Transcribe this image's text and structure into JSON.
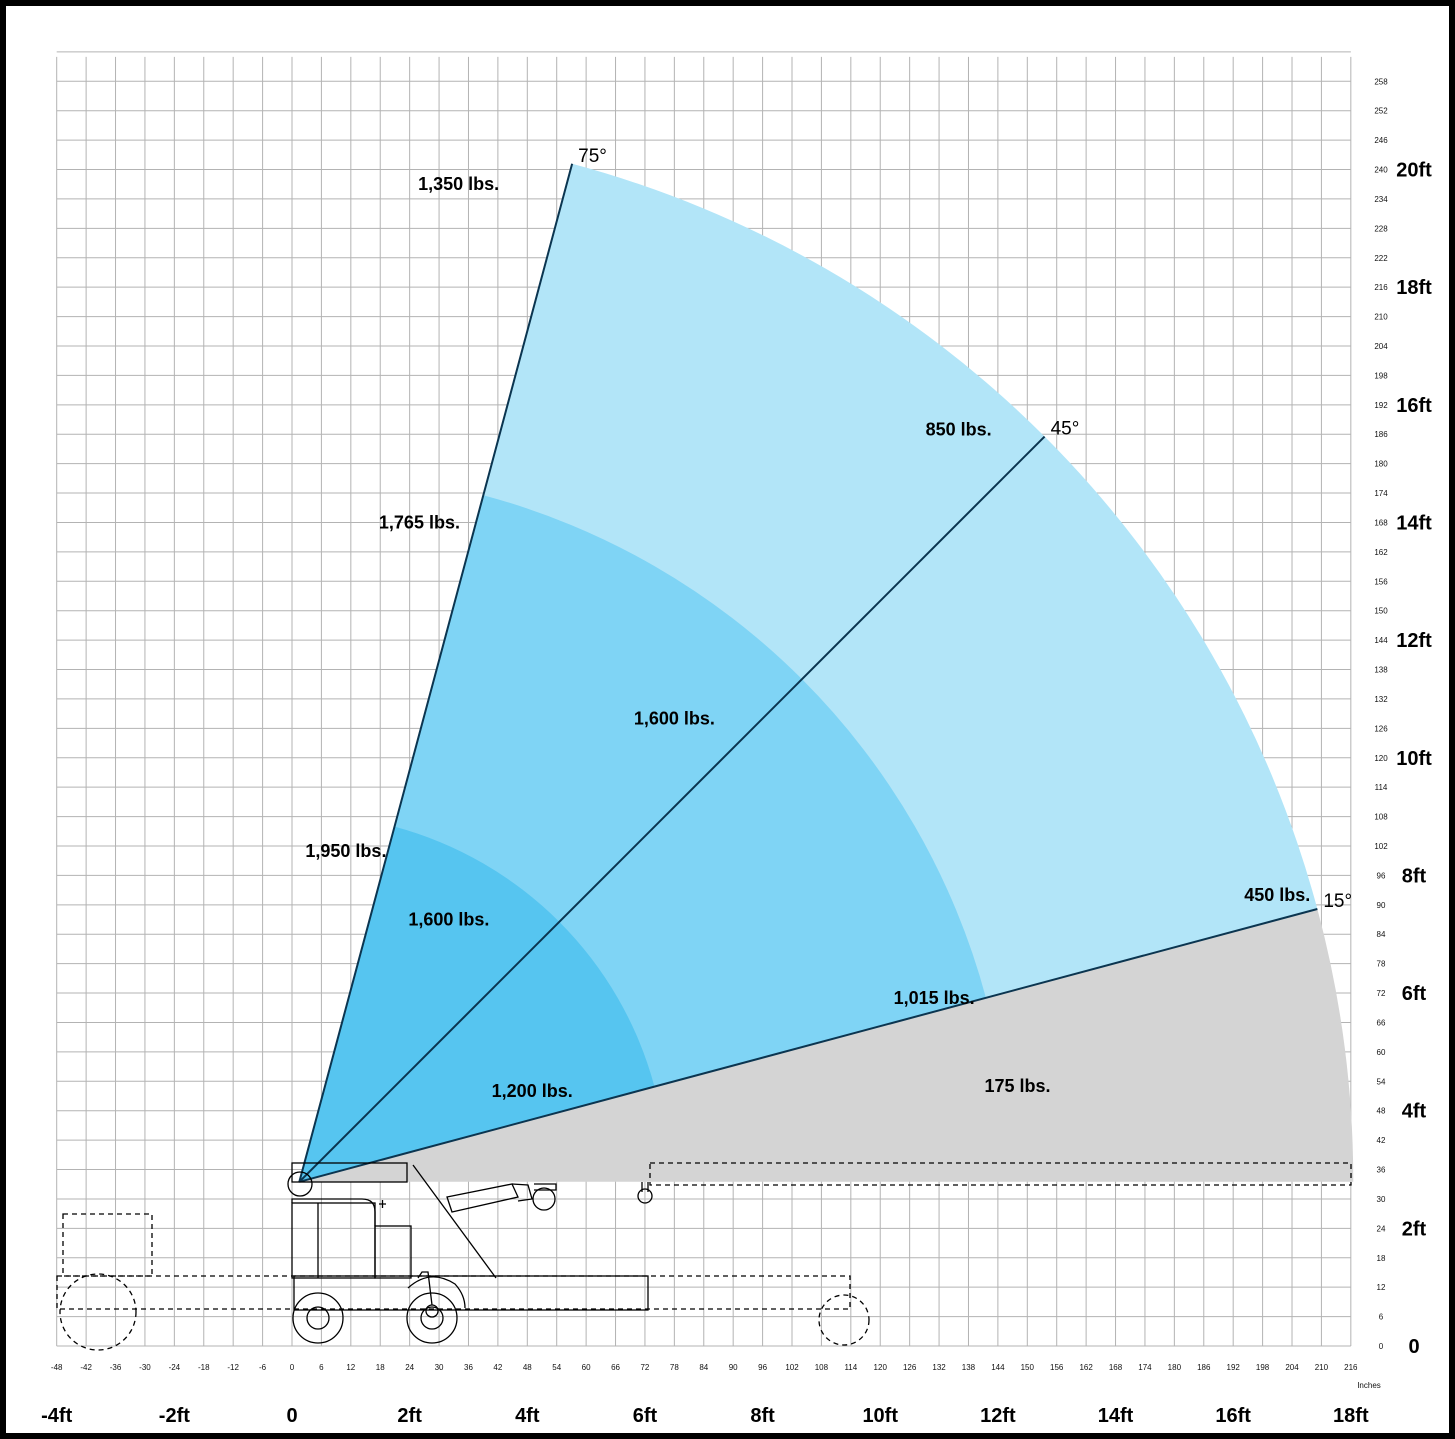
{
  "chart_data": {
    "type": "area",
    "title": "",
    "units": "Inches",
    "x_axis": {
      "inch_ticks": [
        -48,
        -42,
        -36,
        -30,
        -24,
        -18,
        -12,
        -6,
        0,
        6,
        12,
        18,
        24,
        30,
        36,
        42,
        48,
        54,
        60,
        66,
        72,
        78,
        84,
        90,
        96,
        102,
        108,
        114,
        120,
        126,
        132,
        138,
        144,
        150,
        156,
        162,
        168,
        174,
        180,
        186,
        192,
        198,
        204,
        210,
        216
      ],
      "foot_ticks": [
        {
          "value": -48,
          "label": "-4ft"
        },
        {
          "value": -24,
          "label": "-2ft"
        },
        {
          "value": 0,
          "label": "0"
        },
        {
          "value": 24,
          "label": "2ft"
        },
        {
          "value": 48,
          "label": "4ft"
        },
        {
          "value": 72,
          "label": "6ft"
        },
        {
          "value": 96,
          "label": "8ft"
        },
        {
          "value": 120,
          "label": "10ft"
        },
        {
          "value": 144,
          "label": "12ft"
        },
        {
          "value": 168,
          "label": "14ft"
        },
        {
          "value": 192,
          "label": "16ft"
        },
        {
          "value": 216,
          "label": "18ft"
        }
      ],
      "range": [
        -48,
        216
      ]
    },
    "y_axis": {
      "inch_ticks": [
        0,
        6,
        12,
        18,
        24,
        30,
        36,
        42,
        48,
        54,
        60,
        66,
        72,
        78,
        84,
        90,
        96,
        102,
        108,
        114,
        120,
        126,
        132,
        138,
        144,
        150,
        156,
        162,
        168,
        174,
        180,
        186,
        192,
        198,
        204,
        210,
        216,
        222,
        228,
        234,
        240,
        246,
        252,
        258
      ],
      "foot_ticks": [
        {
          "value": 0,
          "label": "0"
        },
        {
          "value": 24,
          "label": "2ft"
        },
        {
          "value": 48,
          "label": "4ft"
        },
        {
          "value": 72,
          "label": "6ft"
        },
        {
          "value": 96,
          "label": "8ft"
        },
        {
          "value": 120,
          "label": "10ft"
        },
        {
          "value": 144,
          "label": "12ft"
        },
        {
          "value": 168,
          "label": "14ft"
        },
        {
          "value": 192,
          "label": "16ft"
        },
        {
          "value": 216,
          "label": "18ft"
        },
        {
          "value": 240,
          "label": "20ft"
        }
      ],
      "range": [
        0,
        264
      ]
    },
    "pivot": {
      "x": 1.5,
      "y": 33.5
    },
    "boom_angles": [
      {
        "angle": 75,
        "label": "75°",
        "length": 215
      },
      {
        "angle": 45,
        "label": "45°",
        "length": 215
      },
      {
        "angle": 15,
        "label": "15°",
        "length": 215
      }
    ],
    "capacity_zones": [
      {
        "radius": 215,
        "from_angle": 15,
        "to_angle": 75,
        "color": "#b2e5f8"
      },
      {
        "radius": 145,
        "from_angle": 15,
        "to_angle": 75,
        "color": "#7fd4f5"
      },
      {
        "radius": 75,
        "from_angle": 15,
        "to_angle": 75,
        "color": "#56c5f0"
      },
      {
        "radius": 215,
        "from_angle": 0,
        "to_angle": 15,
        "color": "#d4d4d4"
      }
    ],
    "load_labels": [
      {
        "text": "1,350 lbs.",
        "x": 34,
        "y": 237
      },
      {
        "text": "1,765 lbs.",
        "x": 26,
        "y": 168
      },
      {
        "text": "1,950 lbs.",
        "x": 11,
        "y": 101
      },
      {
        "text": "850 lbs.",
        "x": 136,
        "y": 187
      },
      {
        "text": "1,600 lbs.",
        "x": 78,
        "y": 128
      },
      {
        "text": "1,600 lbs.",
        "x": 32,
        "y": 87
      },
      {
        "text": "1,015 lbs.",
        "x": 131,
        "y": 71
      },
      {
        "text": "1,200 lbs.",
        "x": 49,
        "y": 52
      },
      {
        "text": "450 lbs.",
        "x": 201,
        "y": 92
      },
      {
        "text": "175 lbs.",
        "x": 148,
        "y": 53
      }
    ],
    "colors": {
      "outer_zone": "#b2e5f8",
      "middle_zone": "#7fd4f5",
      "inner_zone": "#56c5f0",
      "low_angle_zone": "#d4d4d4",
      "grid": "#b3b3b3",
      "boom_line": "#0b3550"
    }
  }
}
